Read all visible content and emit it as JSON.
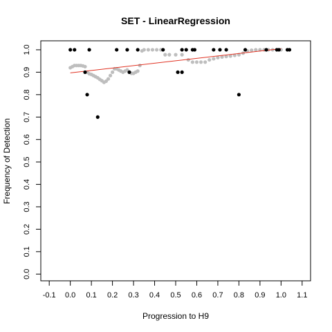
{
  "chart_data": {
    "type": "scatter",
    "title": "SET - LinearRegression",
    "xlabel": "Progression to H9",
    "ylabel": "Frequency of Detection",
    "xlim": [
      -0.14,
      1.14
    ],
    "ylim": [
      -0.03,
      1.04
    ],
    "x_ticks": [
      "-0.1",
      "0.0",
      "0.1",
      "0.2",
      "0.3",
      "0.4",
      "0.5",
      "0.6",
      "0.7",
      "0.8",
      "0.9",
      "1.0",
      "1.1"
    ],
    "y_ticks": [
      "0.0",
      "0.1",
      "0.2",
      "0.3",
      "0.4",
      "0.5",
      "0.6",
      "0.7",
      "0.8",
      "0.9",
      "1.0"
    ],
    "grid": false,
    "series": [
      {
        "kind": "smoothed",
        "color": "#bebebe",
        "x": [
          0.0,
          0.01,
          0.02,
          0.03,
          0.04,
          0.05,
          0.06,
          0.07,
          0.08,
          0.09,
          0.1,
          0.11,
          0.12,
          0.13,
          0.14,
          0.15,
          0.16,
          0.17,
          0.18,
          0.19,
          0.2,
          0.21,
          0.22,
          0.23,
          0.24,
          0.25,
          0.26,
          0.27,
          0.28,
          0.29,
          0.3,
          0.31,
          0.32,
          0.33,
          0.34,
          0.35,
          0.37,
          0.39,
          0.41,
          0.43,
          0.45,
          0.47,
          0.5,
          0.53,
          0.56,
          0.58,
          0.6,
          0.62,
          0.64,
          0.66,
          0.68,
          0.7,
          0.72,
          0.74,
          0.76,
          0.78,
          0.8,
          0.82,
          0.84,
          0.86,
          0.88,
          0.9,
          0.92,
          0.94,
          0.96,
          0.98,
          1.0
        ],
        "y": [
          0.92,
          0.925,
          0.93,
          0.93,
          0.93,
          0.93,
          0.928,
          0.925,
          0.9,
          0.893,
          0.89,
          0.885,
          0.88,
          0.875,
          0.868,
          0.862,
          0.855,
          0.86,
          0.87,
          0.885,
          0.9,
          0.915,
          0.915,
          0.91,
          0.905,
          0.9,
          0.905,
          0.91,
          0.9,
          0.895,
          0.895,
          0.9,
          0.905,
          0.93,
          0.995,
          1.0,
          1.0,
          1.0,
          1.0,
          1.0,
          0.978,
          0.978,
          0.978,
          0.978,
          0.955,
          0.945,
          0.945,
          0.945,
          0.945,
          0.955,
          0.96,
          0.965,
          0.968,
          0.97,
          0.972,
          0.975,
          0.978,
          0.985,
          0.995,
          0.998,
          1.0,
          1.0,
          1.0,
          1.0,
          1.0,
          1.0,
          1.0
        ]
      },
      {
        "kind": "observed",
        "color": "#000000",
        "x": [
          0.0,
          0.02,
          0.07,
          0.08,
          0.09,
          0.13,
          0.22,
          0.27,
          0.28,
          0.32,
          0.44,
          0.51,
          0.53,
          0.53,
          0.55,
          0.58,
          0.59,
          0.68,
          0.71,
          0.74,
          0.8,
          0.83,
          0.93,
          0.98,
          0.99,
          1.03,
          1.04
        ],
        "y": [
          1.0,
          1.0,
          0.9,
          0.8,
          1.0,
          0.7,
          1.0,
          1.0,
          0.9,
          1.0,
          1.0,
          0.9,
          1.0,
          0.9,
          1.0,
          1.0,
          1.0,
          1.0,
          1.0,
          1.0,
          0.8,
          1.0,
          1.0,
          1.0,
          1.0,
          1.0,
          1.0
        ]
      },
      {
        "kind": "regression",
        "color": "#e03020",
        "x": [
          0.0,
          1.0
        ],
        "y": [
          0.897,
          1.005
        ]
      }
    ]
  }
}
